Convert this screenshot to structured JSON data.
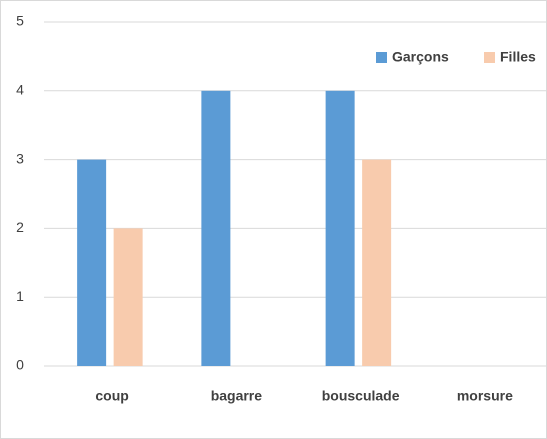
{
  "chart_data": {
    "type": "bar",
    "categories": [
      "coup",
      "bagarre",
      "bousculade",
      "morsure"
    ],
    "series": [
      {
        "name": "Garçons",
        "color": "#5b9bd5",
        "values": [
          3,
          4,
          4,
          0
        ]
      },
      {
        "name": "Filles",
        "color": "#f8cbad",
        "values": [
          2,
          0,
          3,
          0
        ]
      }
    ],
    "ylim": [
      0,
      5
    ],
    "yticks": [
      0,
      1,
      2,
      3,
      4,
      5
    ],
    "grid": true,
    "legend": "top-right"
  }
}
